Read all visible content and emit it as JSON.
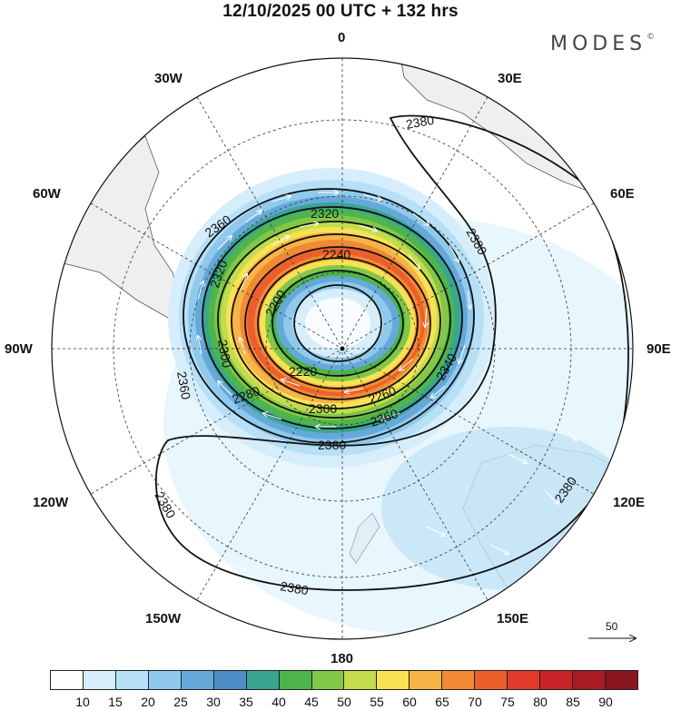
{
  "title": "12/10/2025  00 UTC  + 132 hrs",
  "brand": "MODES",
  "brand_mark": "©",
  "longitude_labels": {
    "lon_0": "0",
    "lon_30e": "30E",
    "lon_60e": "60E",
    "lon_90e": "90E",
    "lon_120e": "120E",
    "lon_150e": "150E",
    "lon_180": "180",
    "lon_150w": "150W",
    "lon_120w": "120W",
    "lon_90w": "90W",
    "lon_60w": "60W",
    "lon_30w": "30W"
  },
  "contour_labels": {
    "c2200": "2200",
    "c2220": "2220",
    "c2240": "2240",
    "c2260": "2260",
    "c2280": "2280",
    "c2300a": "2300",
    "c2300b": "2300",
    "c2320a": "2320",
    "c2320b": "2320",
    "c2340": "2340",
    "c2360a": "2360",
    "c2360b": "2360",
    "c2360c": "2360",
    "c2380a": "2380",
    "c2380b": "2380",
    "c2380c": "2380",
    "c2380d": "2380",
    "c2380e": "2380"
  },
  "reference_vector": "50",
  "colorbar": {
    "colors": [
      "#ffffff",
      "#d6eefb",
      "#b7e0f7",
      "#90c9ec",
      "#65a9da",
      "#4b8ec5",
      "#3aa591",
      "#4db54b",
      "#83c748",
      "#c3dc4d",
      "#f6e253",
      "#f7b447",
      "#f28a33",
      "#ec5f2d",
      "#e23b2b",
      "#c92327",
      "#a91b24",
      "#87161f"
    ],
    "ticks": [
      "10",
      "15",
      "20",
      "25",
      "30",
      "35",
      "40",
      "45",
      "50",
      "55",
      "60",
      "65",
      "70",
      "75",
      "80",
      "85",
      "90"
    ]
  }
}
